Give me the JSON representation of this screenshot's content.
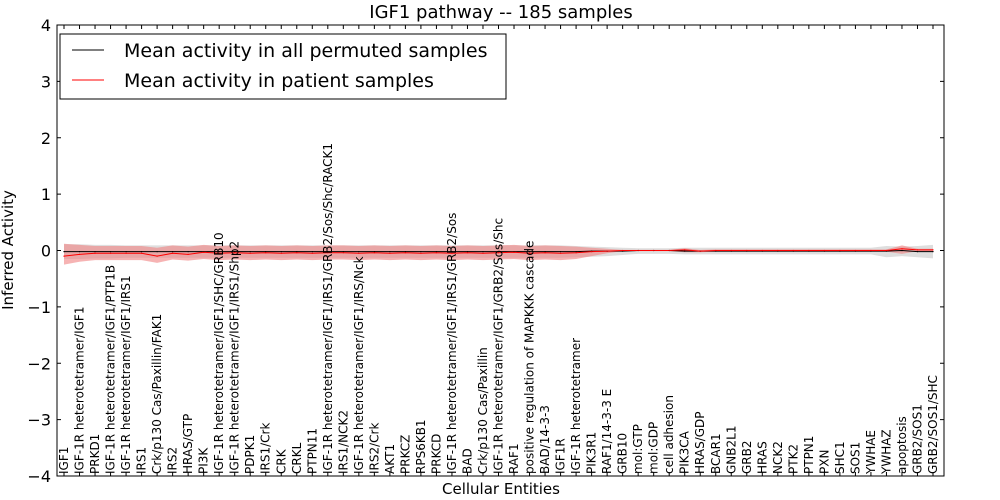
{
  "chart_data": {
    "type": "line",
    "title": "IGF1 pathway -- 185 samples",
    "xlabel": "Cellular Entities",
    "ylabel": "Inferred Activity",
    "ylim": [
      -4,
      4
    ],
    "yticks": [
      "−4",
      "−3",
      "−2",
      "−1",
      "0",
      "1",
      "2",
      "3",
      "4"
    ],
    "yticks_values": [
      -4,
      -3,
      -2,
      -1,
      0,
      1,
      2,
      3,
      4
    ],
    "grid": false,
    "legend_position": "top-left",
    "colors": {
      "permuted": "#000000",
      "permuted_band": "#c8c8c8",
      "patient": "#ff0000",
      "patient_band": "#f08080"
    },
    "categories": [
      "IGF1",
      "IGF-1R heterotetramer/IGF1",
      "PRKD1",
      "IGF-1R heterotetramer/IGF1/PTP1B",
      "IGF-1R heterotetramer/IGF1/IRS1",
      "IRS1",
      "Crk/p130 Cas/Paxillin/FAK1",
      "IRS2",
      "HRAS/GTP",
      "PI3K",
      "IGF-1R heterotetramer/IGF1/SHC/GRB10",
      "IGF-1R heterotetramer/IGF1/IRS1/Shp2",
      "PDPK1",
      "IRS1/Crk",
      "CRK",
      "CRKL",
      "PTPN11",
      "IGF-1R heterotetramer/IGF1/IRS1/GRB2/Sos/Shc/RACK1",
      "IRS1/NCK2",
      "IGF-1R heterotetramer/IGF1/IRS/Nck",
      "IRS2/Crk",
      "AKT1",
      "PRKCZ",
      "RPS6KB1",
      "PRKCD",
      "IGF-1R heterotetramer/IGF1/IRS1/GRB2/Sos",
      "BAD",
      "Crk/p130 Cas/Paxillin",
      "IGF-1R heterotetramer/IGF1/GRB2/Sos/Shc",
      "RAF1",
      "positive regulation of MAPKKK cascade",
      "BAD/14-3-3",
      "IGF1R",
      "IGF-1R heterotetramer",
      "PIK3R1",
      "RAF1/14-3-3 E",
      "GRB10",
      "mol:GTP",
      "mol:GDP",
      "cell adhesion",
      "PIK3CA",
      "HRAS/GDP",
      "BCAR1",
      "GNB2L1",
      "GRB2",
      "HRAS",
      "NCK2",
      "PTK2",
      "PTPN1",
      "PXN",
      "SHC1",
      "SOS1",
      "YWHAE",
      "YWHAZ",
      "apoptosis",
      "GRB2/SOS1",
      "GRB2/SOS1/SHC"
    ],
    "series": [
      {
        "name": "Mean activity in all permuted samples",
        "values": [
          -0.02,
          -0.02,
          -0.02,
          -0.02,
          -0.02,
          -0.02,
          -0.02,
          -0.02,
          -0.02,
          -0.02,
          -0.02,
          -0.02,
          -0.02,
          -0.02,
          -0.02,
          -0.02,
          -0.02,
          -0.02,
          -0.02,
          -0.02,
          -0.02,
          -0.02,
          -0.02,
          -0.02,
          -0.02,
          -0.02,
          -0.02,
          -0.02,
          -0.02,
          -0.02,
          -0.02,
          -0.02,
          -0.02,
          -0.02,
          -0.01,
          -0.01,
          -0.01,
          0.0,
          0.0,
          0.0,
          -0.01,
          -0.01,
          -0.01,
          -0.01,
          -0.01,
          -0.01,
          -0.01,
          -0.01,
          -0.01,
          -0.01,
          -0.01,
          -0.01,
          -0.01,
          -0.01,
          0.0,
          -0.02,
          -0.02
        ],
        "lower": [
          -0.15,
          -0.15,
          -0.14,
          -0.14,
          -0.13,
          -0.13,
          -0.13,
          -0.13,
          -0.13,
          -0.13,
          -0.13,
          -0.13,
          -0.13,
          -0.13,
          -0.13,
          -0.13,
          -0.13,
          -0.13,
          -0.13,
          -0.13,
          -0.13,
          -0.13,
          -0.13,
          -0.13,
          -0.13,
          -0.13,
          -0.13,
          -0.13,
          -0.13,
          -0.13,
          -0.13,
          -0.13,
          -0.13,
          -0.12,
          -0.11,
          -0.1,
          -0.08,
          -0.06,
          -0.06,
          -0.06,
          -0.07,
          -0.07,
          -0.07,
          -0.07,
          -0.07,
          -0.07,
          -0.07,
          -0.07,
          -0.07,
          -0.07,
          -0.07,
          -0.07,
          -0.07,
          -0.12,
          -0.1,
          -0.12,
          -0.14
        ],
        "upper": [
          0.11,
          0.11,
          0.1,
          0.1,
          0.09,
          0.09,
          0.09,
          0.09,
          0.09,
          0.09,
          0.09,
          0.09,
          0.09,
          0.09,
          0.09,
          0.09,
          0.09,
          0.09,
          0.09,
          0.09,
          0.09,
          0.09,
          0.09,
          0.09,
          0.09,
          0.09,
          0.09,
          0.09,
          0.09,
          0.09,
          0.09,
          0.09,
          0.09,
          0.08,
          0.07,
          0.06,
          0.05,
          0.04,
          0.04,
          0.04,
          0.05,
          0.05,
          0.05,
          0.05,
          0.05,
          0.05,
          0.05,
          0.05,
          0.05,
          0.05,
          0.05,
          0.05,
          0.05,
          0.08,
          0.07,
          0.08,
          0.1
        ]
      },
      {
        "name": "Mean activity in patient samples",
        "values": [
          -0.1,
          -0.07,
          -0.05,
          -0.05,
          -0.05,
          -0.05,
          -0.1,
          -0.05,
          -0.07,
          -0.03,
          -0.05,
          -0.04,
          -0.05,
          -0.04,
          -0.05,
          -0.04,
          -0.05,
          -0.04,
          -0.04,
          -0.05,
          -0.04,
          -0.05,
          -0.04,
          -0.05,
          -0.04,
          -0.05,
          -0.04,
          -0.05,
          -0.04,
          -0.03,
          -0.05,
          -0.04,
          -0.05,
          -0.04,
          -0.02,
          -0.01,
          0.0,
          0.0,
          0.0,
          0.0,
          0.01,
          -0.01,
          0.0,
          0.0,
          0.0,
          0.0,
          0.0,
          0.0,
          0.0,
          0.0,
          0.0,
          0.0,
          0.0,
          0.0,
          0.03,
          0.01,
          0.01
        ],
        "lower": [
          -0.25,
          -0.2,
          -0.17,
          -0.17,
          -0.17,
          -0.17,
          -0.22,
          -0.16,
          -0.18,
          -0.15,
          -0.17,
          -0.16,
          -0.17,
          -0.16,
          -0.17,
          -0.16,
          -0.17,
          -0.16,
          -0.16,
          -0.17,
          -0.16,
          -0.17,
          -0.16,
          -0.17,
          -0.16,
          -0.17,
          -0.16,
          -0.17,
          -0.16,
          -0.15,
          -0.17,
          -0.16,
          -0.17,
          -0.15,
          -0.1,
          -0.05,
          -0.01,
          -0.01,
          -0.01,
          -0.01,
          -0.03,
          -0.03,
          -0.02,
          -0.02,
          -0.02,
          -0.02,
          -0.02,
          -0.02,
          -0.02,
          -0.02,
          -0.02,
          -0.02,
          -0.02,
          -0.02,
          -0.06,
          -0.01,
          -0.01
        ],
        "upper": [
          0.12,
          0.1,
          0.08,
          0.08,
          0.08,
          0.08,
          0.05,
          0.09,
          0.07,
          0.1,
          0.08,
          0.09,
          0.08,
          0.09,
          0.08,
          0.09,
          0.08,
          0.09,
          0.09,
          0.08,
          0.09,
          0.08,
          0.09,
          0.08,
          0.09,
          0.08,
          0.09,
          0.08,
          0.09,
          0.1,
          0.08,
          0.09,
          0.08,
          0.07,
          0.05,
          0.03,
          0.01,
          0.01,
          0.01,
          0.01,
          0.04,
          0.01,
          0.02,
          0.02,
          0.02,
          0.02,
          0.02,
          0.02,
          0.02,
          0.02,
          0.02,
          0.02,
          0.02,
          0.02,
          0.09,
          0.03,
          0.03
        ]
      }
    ]
  }
}
